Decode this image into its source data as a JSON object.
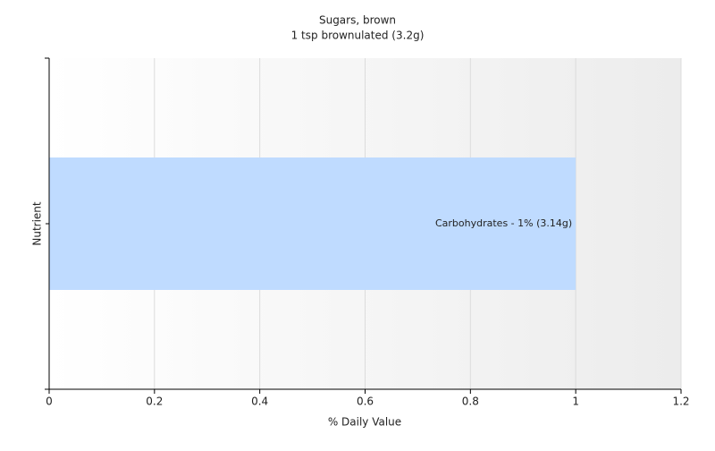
{
  "chart_data": {
    "type": "bar",
    "orientation": "horizontal",
    "title": "Sugars, brown",
    "subtitle": "1 tsp brownulated (3.2g)",
    "x_label": "% Daily Value",
    "y_label": "Nutrient",
    "categories": [
      null
    ],
    "values": [
      1
    ],
    "value_labels": [
      "Carbohydrates - 1% (3.14g)"
    ],
    "color": "#bfdbff",
    "xlim": [
      0,
      1.2
    ],
    "xticks": [
      0,
      0.2,
      0.4,
      0.6,
      0.8,
      1,
      1.2
    ],
    "grid": true
  }
}
